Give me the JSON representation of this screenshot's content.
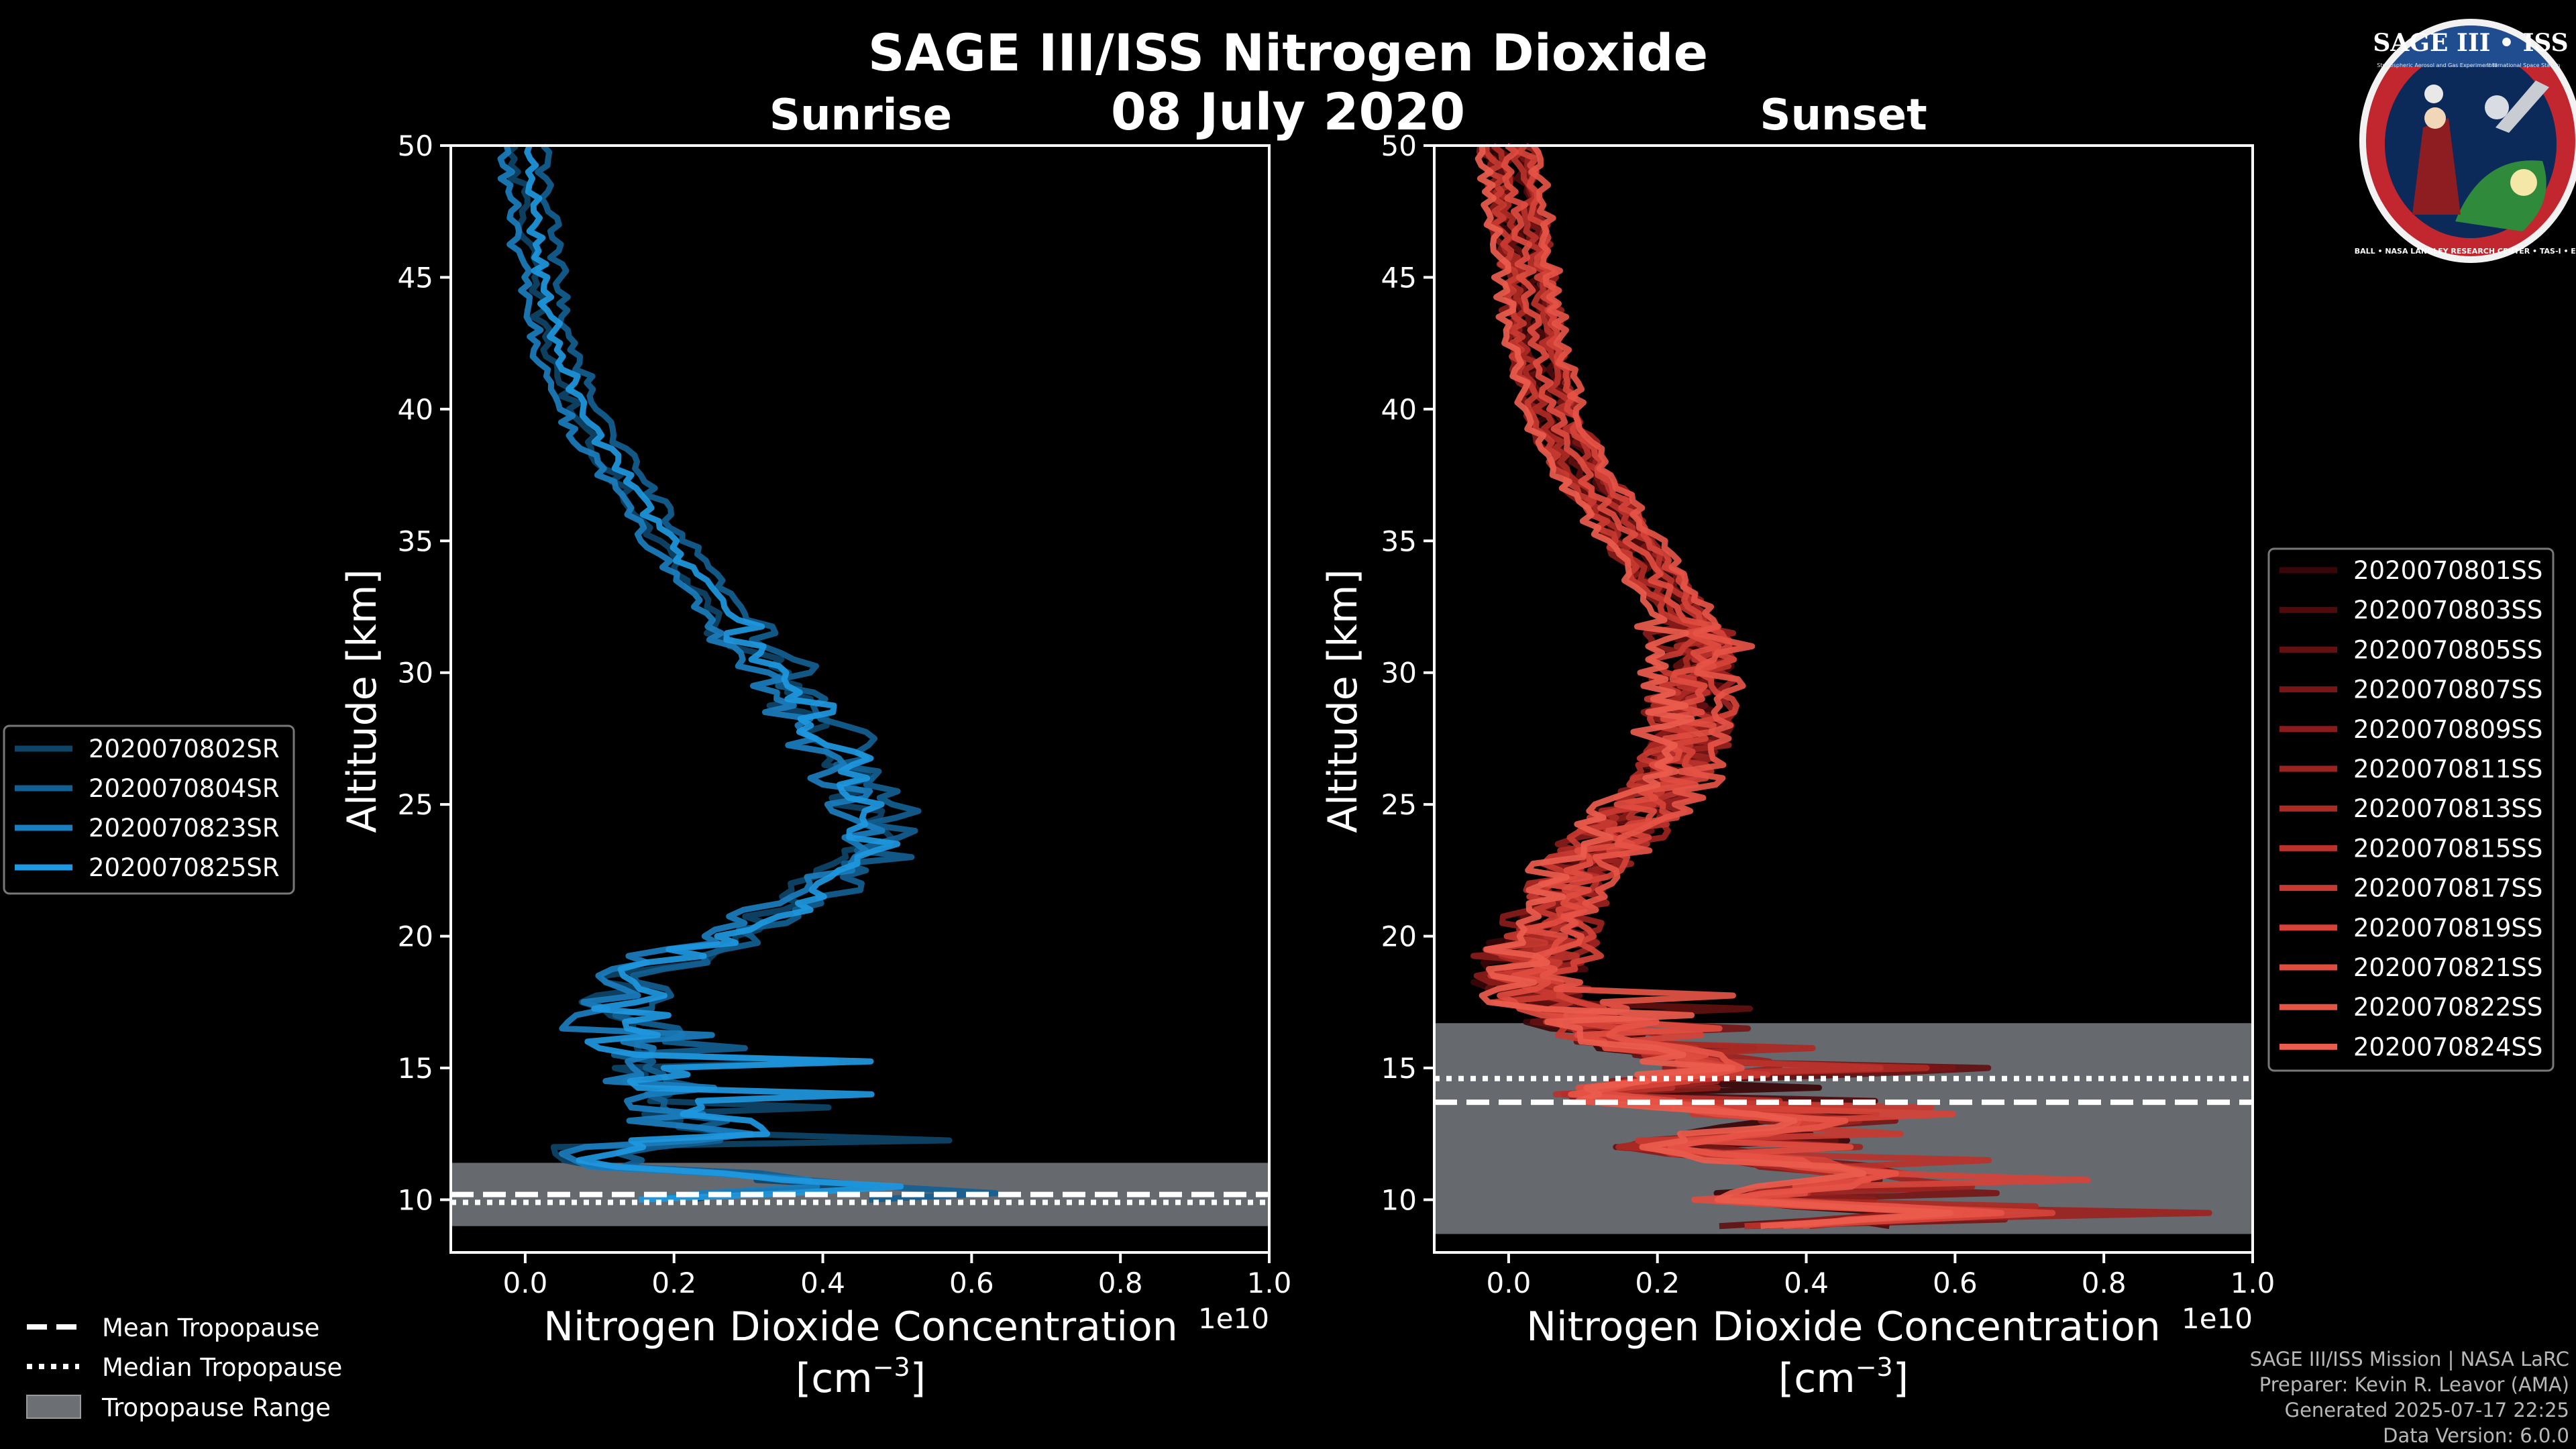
{
  "title": "SAGE III/ISS Nitrogen Dioxide",
  "subtitle": "08 July 2020",
  "footer": [
    "SAGE III/ISS Mission | NASA LaRC",
    "Preparer: Kevin R. Leavor (AMA)",
    "Generated 2025-07-17 22:25",
    "Data Version: 6.0.0"
  ],
  "logo": {
    "title": "SAGE III • ISS",
    "ring_text": "BALL • NASA LANGLEY RESEARCH CENTER • TAS-I • ESA",
    "inner_left": "Stratospheric Aerosol and Gas Experiment III",
    "inner_right": "International Space Station"
  },
  "tropopause_legend": {
    "mean": "Mean Tropopause",
    "median": "Median Tropopause",
    "range": "Tropopause Range"
  },
  "chart_data": [
    {
      "type": "line",
      "title": "Sunrise",
      "xlabel": "Nitrogen Dioxide Concentration",
      "xlabel_unit": "[cm",
      "xlabel_exp": "−3",
      "xlabel_close": "]",
      "ylabel": "Altitude [km]",
      "x_scale_label": "1e10",
      "xlim": [
        -0.1,
        1.0
      ],
      "ylim": [
        8,
        50
      ],
      "xticks": [
        0.0,
        0.2,
        0.4,
        0.6,
        0.8,
        1.0
      ],
      "xtick_labels": [
        "0.0",
        "0.2",
        "0.4",
        "0.6",
        "0.8",
        "1.0"
      ],
      "yticks": [
        10,
        15,
        20,
        25,
        30,
        35,
        40,
        45,
        50
      ],
      "tropopause": {
        "mean": 10.2,
        "median": 9.9,
        "range": [
          9.0,
          11.4
        ]
      },
      "legend_position": "left",
      "series": [
        {
          "name": "2020070802SR",
          "color": "#0e4468",
          "offset": -0.015
        },
        {
          "name": "2020070804SR",
          "color": "#145f92",
          "offset": 0.02
        },
        {
          "name": "2020070823SR",
          "color": "#1a7dbd",
          "offset": -0.03
        },
        {
          "name": "2020070825SR",
          "color": "#1e98e0",
          "offset": 0.0
        }
      ],
      "profile": {
        "altitude": [
          50,
          48,
          46,
          44,
          42,
          40,
          38,
          36,
          34,
          32,
          30,
          28,
          26,
          24.5,
          23,
          22,
          21,
          20,
          19,
          18,
          17,
          16,
          15,
          14,
          13,
          12.5,
          12,
          11.5,
          11,
          10.5,
          10
        ],
        "value": [
          0.0,
          0.01,
          0.02,
          0.03,
          0.05,
          0.08,
          0.12,
          0.17,
          0.22,
          0.28,
          0.34,
          0.4,
          0.45,
          0.48,
          0.46,
          0.41,
          0.35,
          0.28,
          0.2,
          0.14,
          0.12,
          0.14,
          0.16,
          0.18,
          0.22,
          0.3,
          0.1,
          0.05,
          0.28,
          0.45,
          0.2
        ]
      }
    },
    {
      "type": "line",
      "title": "Sunset",
      "xlabel": "Nitrogen Dioxide Concentration",
      "xlabel_unit": "[cm",
      "xlabel_exp": "−3",
      "xlabel_close": "]",
      "ylabel": "Altitude [km]",
      "x_scale_label": "1e10",
      "xlim": [
        -0.1,
        1.0
      ],
      "ylim": [
        8,
        50
      ],
      "xticks": [
        0.0,
        0.2,
        0.4,
        0.6,
        0.8,
        1.0
      ],
      "xtick_labels": [
        "0.0",
        "0.2",
        "0.4",
        "0.6",
        "0.8",
        "1.0"
      ],
      "yticks": [
        10,
        15,
        20,
        25,
        30,
        35,
        40,
        45,
        50
      ],
      "tropopause": {
        "mean": 13.7,
        "median": 14.6,
        "range": [
          8.7,
          16.7
        ]
      },
      "legend_position": "right",
      "series": [
        {
          "name": "2020070801SS",
          "color": "#3a0608",
          "offset": -0.02
        },
        {
          "name": "2020070803SS",
          "color": "#4e0b0c",
          "offset": 0.01
        },
        {
          "name": "2020070805SS",
          "color": "#621010",
          "offset": -0.01
        },
        {
          "name": "2020070807SS",
          "color": "#761616",
          "offset": 0.02
        },
        {
          "name": "2020070809SS",
          "color": "#891c1a",
          "offset": -0.03
        },
        {
          "name": "2020070811SS",
          "color": "#9b231f",
          "offset": 0.03
        },
        {
          "name": "2020070813SS",
          "color": "#ab2a24",
          "offset": -0.015
        },
        {
          "name": "2020070815SS",
          "color": "#ba322b",
          "offset": 0.015
        },
        {
          "name": "2020070817SS",
          "color": "#c83a31",
          "offset": -0.025
        },
        {
          "name": "2020070819SS",
          "color": "#d54338",
          "offset": 0.025
        },
        {
          "name": "2020070821SS",
          "color": "#df4c40",
          "offset": 0.0
        },
        {
          "name": "2020070822SS",
          "color": "#e65446",
          "offset": 0.035
        },
        {
          "name": "2020070824SS",
          "color": "#ea5c4d",
          "offset": -0.035
        }
      ],
      "profile": {
        "altitude": [
          50,
          48,
          46,
          44,
          42,
          40,
          38,
          36,
          34,
          32,
          31,
          30,
          28,
          26,
          24,
          22,
          20,
          19,
          18,
          17,
          16,
          15,
          14,
          13,
          12,
          11,
          10,
          9.5,
          9
        ],
        "value": [
          0.0,
          0.01,
          0.02,
          0.03,
          0.04,
          0.06,
          0.09,
          0.14,
          0.19,
          0.24,
          0.26,
          0.25,
          0.24,
          0.22,
          0.15,
          0.08,
          0.05,
          0.04,
          0.03,
          0.08,
          0.15,
          0.3,
          0.1,
          0.4,
          0.2,
          0.5,
          0.3,
          0.6,
          0.35
        ]
      }
    }
  ]
}
